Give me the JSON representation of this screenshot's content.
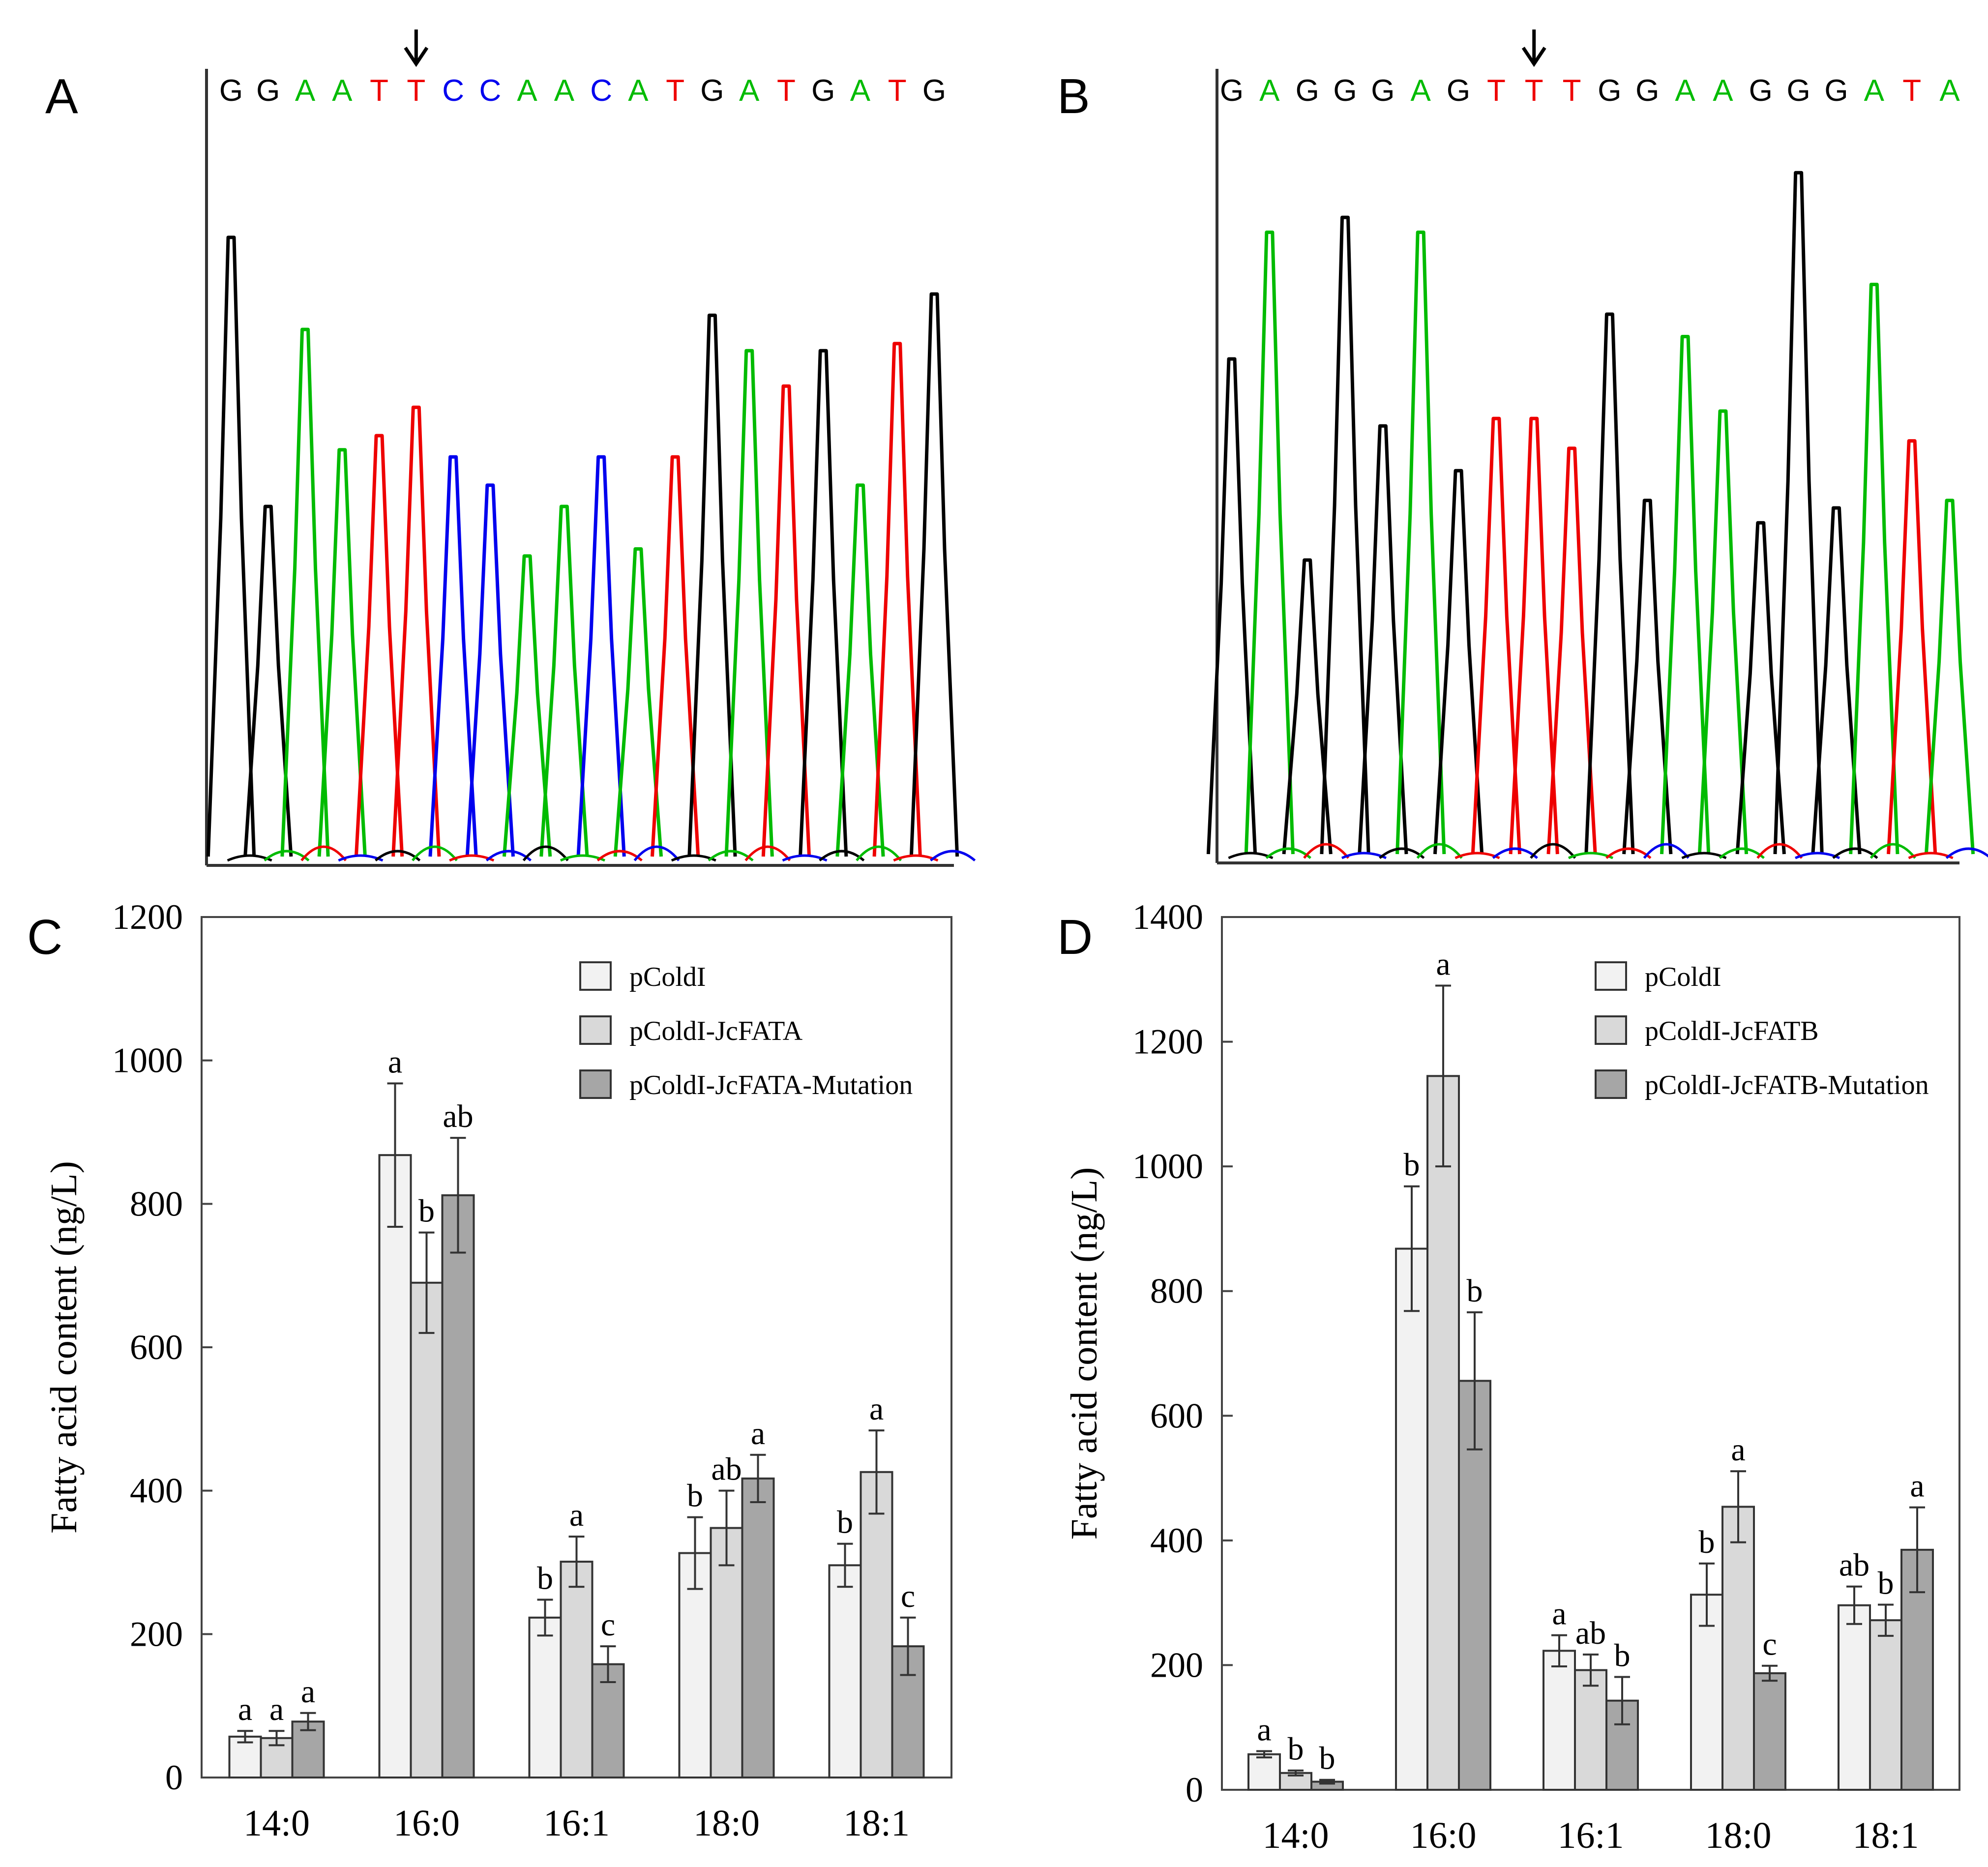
{
  "figure": {
    "panel_labels": [
      "A",
      "B",
      "C",
      "D"
    ]
  },
  "colors": {
    "A": "#00bb00",
    "C": "#0000ee",
    "G": "#000000",
    "T": "#ee0000",
    "bar_fill": [
      "#f2f2f2",
      "#d9d9d9",
      "#a6a6a6"
    ],
    "axis": "#000000"
  },
  "panel_a": {
    "sequence": "GGAATTCCAACATGATGATG",
    "arrow_index": 5,
    "peaks": [
      0.88,
      0.5,
      0.75,
      0.58,
      0.6,
      0.64,
      0.57,
      0.53,
      0.43,
      0.5,
      0.57,
      0.44,
      0.57,
      0.77,
      0.72,
      0.67,
      0.72,
      0.53,
      0.73,
      0.8
    ]
  },
  "panel_b": {
    "sequence": "GAGGGAGTTTGGAAGGGATA",
    "arrow_index": 8,
    "peaks": [
      0.67,
      0.84,
      0.4,
      0.86,
      0.58,
      0.84,
      0.52,
      0.59,
      0.59,
      0.55,
      0.73,
      0.48,
      0.7,
      0.6,
      0.45,
      0.92,
      0.47,
      0.77,
      0.56,
      0.48
    ]
  },
  "chart_data": [
    {
      "type": "bar",
      "panel": "C",
      "title": "",
      "xlabel": "",
      "ylabel": "Fatty acid content (ng/L)",
      "ylim": [
        0,
        1200
      ],
      "yticks": [
        "0",
        "200",
        "400",
        "600",
        "800",
        "1000",
        "1200"
      ],
      "categories": [
        "14:0",
        "16:0",
        "16:1",
        "18:0",
        "18:1"
      ],
      "series": [
        {
          "name": "pColdI",
          "values": [
            57,
            868,
            223,
            313,
            296
          ],
          "errors": [
            8,
            100,
            25,
            50,
            30
          ],
          "letters": [
            "a",
            "a",
            "b",
            "b",
            "b"
          ]
        },
        {
          "name": "pColdI-JcFATA",
          "values": [
            55,
            690,
            301,
            348,
            426
          ],
          "errors": [
            10,
            70,
            35,
            52,
            58
          ],
          "letters": [
            "a",
            "b",
            "a",
            "ab",
            "a"
          ]
        },
        {
          "name": "pColdI-JcFATA-Mutation",
          "values": [
            78,
            812,
            158,
            417,
            183
          ],
          "errors": [
            12,
            80,
            25,
            33,
            40
          ],
          "letters": [
            "a",
            "ab",
            "c",
            "a",
            "c"
          ]
        }
      ]
    },
    {
      "type": "bar",
      "panel": "D",
      "title": "",
      "xlabel": "",
      "ylabel": "Fatty acid content (ng/L)",
      "ylim": [
        0,
        1400
      ],
      "yticks": [
        "0",
        "200",
        "400",
        "600",
        "800",
        "1000",
        "1200",
        "1400"
      ],
      "categories": [
        "14:0",
        "16:0",
        "16:1",
        "18:0",
        "18:1"
      ],
      "series": [
        {
          "name": "pColdI",
          "values": [
            57,
            868,
            223,
            313,
            296
          ],
          "errors": [
            5,
            100,
            25,
            50,
            30
          ],
          "letters": [
            "a",
            "b",
            "a",
            "b",
            "ab"
          ]
        },
        {
          "name": "pColdI-JcFATB",
          "values": [
            27,
            1145,
            192,
            454,
            272
          ],
          "errors": [
            4,
            145,
            25,
            57,
            25
          ],
          "letters": [
            "b",
            "a",
            "ab",
            "a",
            "b"
          ]
        },
        {
          "name": "pColdI-JcFATB-Mutation",
          "values": [
            13,
            656,
            143,
            187,
            385
          ],
          "errors": [
            3,
            110,
            38,
            12,
            68
          ],
          "letters": [
            "b",
            "b",
            "b",
            "c",
            "a"
          ]
        }
      ]
    }
  ]
}
